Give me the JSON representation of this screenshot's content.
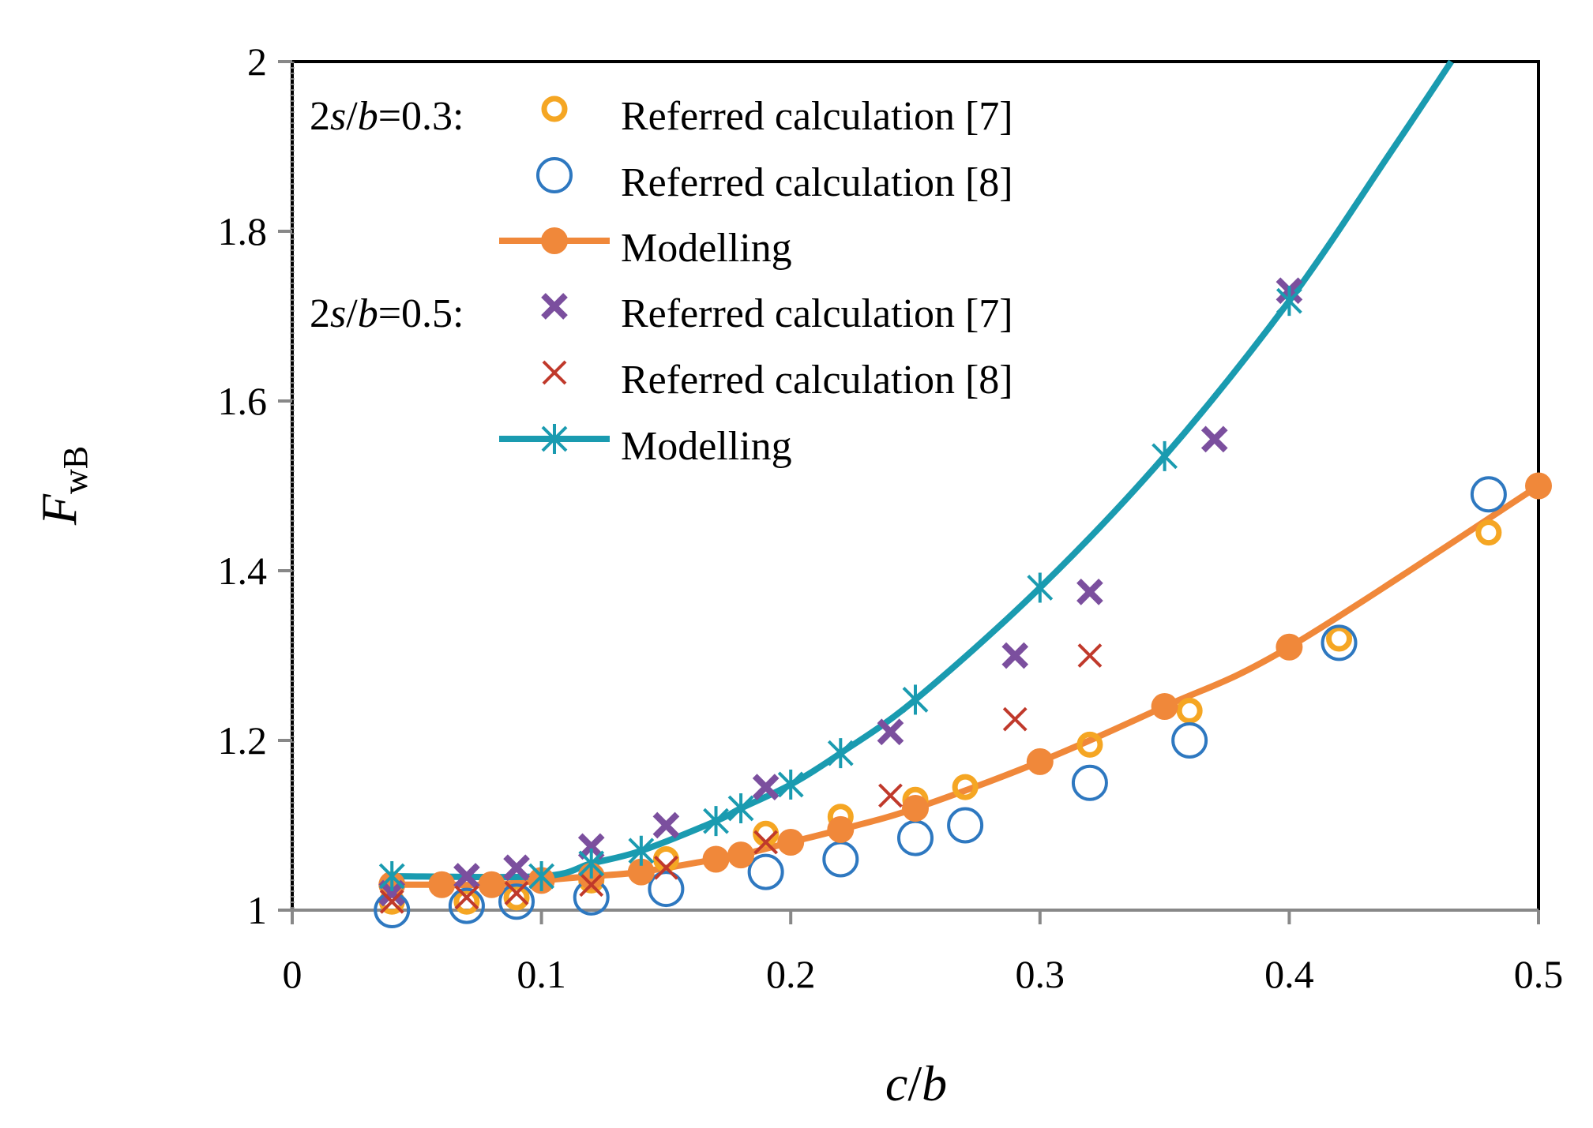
{
  "chart_data": {
    "type": "scatter",
    "title": "",
    "xlabel": "c/b",
    "ylabel": "F_wB",
    "xlabel_parts": {
      "c": "c",
      "slash": "/",
      "b": "b"
    },
    "ylabel_parts": {
      "main": "F",
      "sub": "wB"
    },
    "xlim": [
      0,
      0.5
    ],
    "ylim": [
      1,
      2
    ],
    "xticks": [
      "0",
      "0.1",
      "0.2",
      "0.3",
      "0.4",
      "0.5"
    ],
    "yticks": [
      "1",
      "1.2",
      "1.4",
      "1.6",
      "1.8",
      "2"
    ],
    "xtick_values": [
      0,
      0.1,
      0.2,
      0.3,
      0.4,
      0.5
    ],
    "ytick_values": [
      1,
      1.2,
      1.4,
      1.6,
      1.8,
      2
    ],
    "groups": [
      {
        "prefix": "2",
        "s": "s",
        "slash": "/",
        "b": "b",
        "suffix": "=0.3:"
      },
      {
        "prefix": "2",
        "s": "s",
        "slash": "/",
        "b": "b",
        "suffix": "=0.5:"
      }
    ],
    "legend_position": "top-left",
    "series": [
      {
        "name": "Referred calculation [7]",
        "group": "2s/b=0.3",
        "marker": "small-circle",
        "color": "#F5A623",
        "line": false,
        "points": [
          [
            0.04,
            1.01
          ],
          [
            0.07,
            1.01
          ],
          [
            0.09,
            1.015
          ],
          [
            0.12,
            1.035
          ],
          [
            0.15,
            1.06
          ],
          [
            0.19,
            1.09
          ],
          [
            0.22,
            1.11
          ],
          [
            0.25,
            1.13
          ],
          [
            0.27,
            1.145
          ],
          [
            0.32,
            1.195
          ],
          [
            0.36,
            1.235
          ],
          [
            0.42,
            1.32
          ],
          [
            0.48,
            1.445
          ]
        ]
      },
      {
        "name": "Referred calculation [8]",
        "group": "2s/b=0.3",
        "marker": "large-circle",
        "color": "#2E78C0",
        "line": false,
        "points": [
          [
            0.04,
            1.0
          ],
          [
            0.07,
            1.005
          ],
          [
            0.09,
            1.01
          ],
          [
            0.12,
            1.015
          ],
          [
            0.15,
            1.025
          ],
          [
            0.19,
            1.045
          ],
          [
            0.22,
            1.06
          ],
          [
            0.25,
            1.085
          ],
          [
            0.27,
            1.1
          ],
          [
            0.32,
            1.15
          ],
          [
            0.36,
            1.2
          ],
          [
            0.42,
            1.315
          ],
          [
            0.48,
            1.49
          ]
        ]
      },
      {
        "name": "Modelling",
        "group": "2s/b=0.3",
        "marker": "filled-circle",
        "color": "#F0883A",
        "line": true,
        "points": [
          [
            0.04,
            1.03
          ],
          [
            0.06,
            1.03
          ],
          [
            0.08,
            1.03
          ],
          [
            0.1,
            1.035
          ],
          [
            0.12,
            1.04
          ],
          [
            0.14,
            1.045
          ],
          [
            0.17,
            1.06
          ],
          [
            0.18,
            1.065
          ],
          [
            0.2,
            1.08
          ],
          [
            0.22,
            1.095
          ],
          [
            0.25,
            1.12
          ],
          [
            0.3,
            1.175
          ],
          [
            0.35,
            1.24
          ],
          [
            0.4,
            1.31
          ],
          [
            0.5,
            1.5
          ]
        ]
      },
      {
        "name": "Referred calculation [7]",
        "group": "2s/b=0.5",
        "marker": "bold-x",
        "color": "#7B4F9E",
        "line": false,
        "points": [
          [
            0.04,
            1.02
          ],
          [
            0.07,
            1.04
          ],
          [
            0.09,
            1.05
          ],
          [
            0.12,
            1.075
          ],
          [
            0.15,
            1.1
          ],
          [
            0.19,
            1.145
          ],
          [
            0.24,
            1.21
          ],
          [
            0.29,
            1.3
          ],
          [
            0.32,
            1.375
          ],
          [
            0.37,
            1.555
          ],
          [
            0.4,
            1.73
          ]
        ]
      },
      {
        "name": "Referred calculation [8]",
        "group": "2s/b=0.5",
        "marker": "thin-x",
        "color": "#C0392B",
        "line": false,
        "points": [
          [
            0.04,
            1.01
          ],
          [
            0.07,
            1.015
          ],
          [
            0.09,
            1.02
          ],
          [
            0.12,
            1.03
          ],
          [
            0.15,
            1.05
          ],
          [
            0.19,
            1.08
          ],
          [
            0.24,
            1.135
          ],
          [
            0.29,
            1.225
          ],
          [
            0.32,
            1.3
          ]
        ]
      },
      {
        "name": "Modelling",
        "group": "2s/b=0.5",
        "marker": "star",
        "color": "#1A9BB0",
        "line": true,
        "points": [
          [
            0.04,
            1.04
          ],
          [
            0.1,
            1.04
          ],
          [
            0.12,
            1.055
          ],
          [
            0.14,
            1.07
          ],
          [
            0.17,
            1.105
          ],
          [
            0.18,
            1.12
          ],
          [
            0.2,
            1.148
          ],
          [
            0.22,
            1.185
          ],
          [
            0.25,
            1.248
          ],
          [
            0.3,
            1.38
          ],
          [
            0.35,
            1.535
          ],
          [
            0.4,
            1.718
          ]
        ],
        "curve": [
          [
            0.04,
            1.04
          ],
          [
            0.1,
            1.04
          ],
          [
            0.12,
            1.055
          ],
          [
            0.14,
            1.07
          ],
          [
            0.17,
            1.105
          ],
          [
            0.18,
            1.12
          ],
          [
            0.2,
            1.148
          ],
          [
            0.22,
            1.185
          ],
          [
            0.25,
            1.248
          ],
          [
            0.3,
            1.38
          ],
          [
            0.35,
            1.535
          ],
          [
            0.4,
            1.718
          ],
          [
            0.44,
            1.89
          ],
          [
            0.465,
            2.0
          ]
        ]
      }
    ]
  }
}
